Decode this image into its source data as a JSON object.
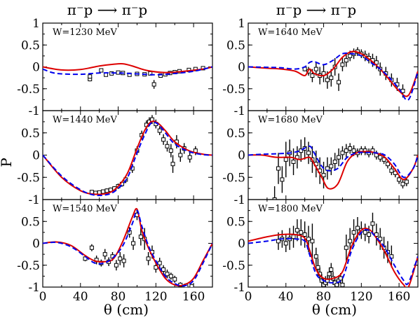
{
  "figure": {
    "shared_ylabel": "P",
    "shared_xlabel": "θ (cm)",
    "column_titles": [
      "π⁻p ⟶ π⁻p",
      "π⁻p ⟶ π⁻p"
    ]
  },
  "chart_data": [
    {
      "type": "line",
      "panel_label": "W=1230 MeV",
      "xlim": [
        0,
        180
      ],
      "ylim": [
        -1,
        1
      ],
      "xticks": [
        0,
        40,
        80,
        120,
        160
      ],
      "yticks": [
        -1,
        -0.5,
        0,
        0.5,
        1
      ],
      "series": [
        {
          "color": "#dd0000",
          "dash": false,
          "x": [
            0,
            20,
            40,
            60,
            75,
            85,
            95,
            110,
            130,
            150,
            170,
            180
          ],
          "y": [
            0,
            -0.07,
            -0.06,
            0.02,
            0.06,
            0.07,
            0.02,
            -0.08,
            -0.13,
            -0.1,
            -0.05,
            0
          ]
        },
        {
          "color": "#0000ee",
          "dash": true,
          "x": [
            0,
            10,
            20,
            40,
            60,
            80,
            100,
            120,
            140,
            160,
            180
          ],
          "y": [
            -0.05,
            -0.13,
            -0.16,
            -0.17,
            -0.14,
            -0.14,
            -0.16,
            -0.18,
            -0.15,
            -0.1,
            0
          ]
        }
      ],
      "points": {
        "x": [
          50,
          50,
          62,
          67,
          73,
          80,
          85,
          92,
          100,
          108,
          114,
          118,
          125,
          130,
          135,
          140,
          145,
          155,
          162,
          170
        ],
        "y": [
          -0.28,
          -0.22,
          -0.08,
          -0.18,
          -0.15,
          -0.13,
          -0.14,
          -0.18,
          -0.16,
          -0.17,
          -0.15,
          -0.4,
          -0.2,
          -0.17,
          -0.14,
          -0.12,
          -0.1,
          -0.07,
          -0.05,
          -0.03
        ],
        "err": [
          0.05,
          0.05,
          0.04,
          0.04,
          0.04,
          0.04,
          0.04,
          0.04,
          0.04,
          0.04,
          0.04,
          0.1,
          0.04,
          0.04,
          0.04,
          0.04,
          0.04,
          0.04,
          0.03,
          0.03
        ]
      }
    },
    {
      "type": "line",
      "panel_label": "W=1440 MeV",
      "xlim": [
        0,
        180
      ],
      "ylim": [
        -1,
        1
      ],
      "xticks": [
        0,
        40,
        80,
        120,
        160
      ],
      "yticks": [
        -1,
        -0.5,
        0,
        0.5,
        1
      ],
      "series": [
        {
          "color": "#dd0000",
          "dash": false,
          "x": [
            0,
            20,
            40,
            55,
            70,
            80,
            90,
            100,
            108,
            115,
            122,
            130,
            140,
            155,
            170,
            180
          ],
          "y": [
            0,
            -0.5,
            -0.8,
            -0.88,
            -0.85,
            -0.7,
            -0.4,
            0.15,
            0.55,
            0.75,
            0.72,
            0.55,
            0.3,
            0.1,
            0.02,
            0
          ]
        },
        {
          "color": "#0000ee",
          "dash": true,
          "x": [
            0,
            20,
            40,
            55,
            70,
            80,
            90,
            100,
            108,
            115,
            122,
            130,
            140,
            155,
            170,
            180
          ],
          "y": [
            0,
            -0.47,
            -0.78,
            -0.9,
            -0.88,
            -0.75,
            -0.5,
            0.05,
            0.45,
            0.72,
            0.7,
            0.5,
            0.25,
            0.08,
            0.01,
            0
          ]
        }
      ],
      "points": {
        "x": [
          52,
          56,
          60,
          64,
          68,
          72,
          76,
          80,
          84,
          88,
          95,
          100,
          105,
          110,
          113,
          116,
          120,
          124,
          128,
          132,
          136,
          138,
          142,
          146,
          150,
          156,
          162
        ],
        "y": [
          -0.83,
          -0.85,
          -0.84,
          -0.82,
          -0.8,
          -0.78,
          -0.75,
          -0.7,
          -0.65,
          -0.55,
          -0.3,
          0.1,
          0.45,
          0.68,
          0.75,
          0.8,
          0.7,
          0.55,
          0.35,
          0.2,
          0.1,
          -0.2,
          0.3,
          0.0,
          0.15,
          -0.05,
          0.1
        ],
        "err": [
          0.04,
          0.04,
          0.04,
          0.04,
          0.05,
          0.05,
          0.05,
          0.06,
          0.06,
          0.08,
          0.1,
          0.1,
          0.1,
          0.1,
          0.1,
          0.1,
          0.1,
          0.1,
          0.12,
          0.12,
          0.15,
          0.2,
          0.15,
          0.15,
          0.12,
          0.12,
          0.1
        ]
      }
    },
    {
      "type": "line",
      "panel_label": "W=1540 MeV",
      "xlim": [
        0,
        180
      ],
      "ylim": [
        -1,
        1
      ],
      "xticks": [
        0,
        40,
        80,
        120,
        160
      ],
      "yticks": [
        -1,
        -0.5,
        0,
        0.5,
        1
      ],
      "series": [
        {
          "color": "#dd0000",
          "dash": false,
          "x": [
            0,
            15,
            30,
            45,
            55,
            65,
            75,
            85,
            95,
            100,
            105,
            112,
            120,
            130,
            140,
            150,
            160,
            170,
            180
          ],
          "y": [
            0,
            0.03,
            -0.05,
            -0.28,
            -0.4,
            -0.42,
            -0.35,
            0.05,
            0.6,
            0.78,
            0.3,
            -0.1,
            -0.45,
            -0.8,
            -0.95,
            -0.95,
            -0.8,
            -0.4,
            0
          ]
        },
        {
          "color": "#0000ee",
          "dash": true,
          "x": [
            0,
            15,
            30,
            45,
            55,
            65,
            75,
            85,
            95,
            100,
            105,
            112,
            120,
            130,
            140,
            150,
            160,
            170,
            180
          ],
          "y": [
            0,
            0.02,
            -0.08,
            -0.3,
            -0.45,
            -0.45,
            -0.32,
            -0.05,
            0.45,
            0.75,
            0.4,
            -0.05,
            -0.4,
            -0.75,
            -0.92,
            -0.97,
            -0.85,
            -0.45,
            0
          ]
        }
      ],
      "points": {
        "x": [
          45,
          52,
          57,
          62,
          66,
          70,
          74,
          78,
          82,
          86,
          92,
          96,
          100,
          104,
          108,
          112,
          116,
          120,
          124,
          128,
          132,
          136,
          140,
          146,
          152,
          158
        ],
        "y": [
          -0.35,
          -0.1,
          -0.38,
          -0.45,
          -0.25,
          -0.42,
          -0.3,
          -0.5,
          -0.35,
          -0.4,
          0.25,
          0.0,
          0.65,
          0.15,
          0.1,
          -0.35,
          -0.2,
          -0.55,
          -0.45,
          -0.6,
          -0.7,
          -0.75,
          -0.82,
          -0.95,
          -0.97,
          -0.98
        ],
        "err": [
          0.06,
          0.08,
          0.1,
          0.08,
          0.12,
          0.1,
          0.1,
          0.12,
          0.15,
          0.15,
          0.12,
          0.15,
          0.12,
          0.2,
          0.25,
          0.15,
          0.15,
          0.12,
          0.12,
          0.1,
          0.1,
          0.08,
          0.08,
          0.06,
          0.06,
          0.05
        ]
      }
    },
    {
      "type": "line",
      "panel_label": "W=1640 MeV",
      "xlim": [
        0,
        180
      ],
      "ylim": [
        -1,
        1
      ],
      "xticks": [
        0,
        40,
        80,
        120,
        160
      ],
      "yticks": [
        -1,
        -0.5,
        0,
        0.5,
        1
      ],
      "series": [
        {
          "color": "#dd0000",
          "dash": false,
          "x": [
            0,
            20,
            35,
            50,
            60,
            65,
            70,
            80,
            90,
            100,
            110,
            120,
            130,
            140,
            150,
            160,
            170,
            180
          ],
          "y": [
            0,
            -0.03,
            -0.05,
            -0.1,
            -0.2,
            -0.05,
            -0.15,
            -0.2,
            -0.05,
            0.22,
            0.35,
            0.3,
            0.15,
            -0.05,
            -0.3,
            -0.55,
            -0.65,
            -0.1
          ]
        },
        {
          "color": "#0000ee",
          "dash": true,
          "x": [
            0,
            20,
            35,
            50,
            60,
            65,
            70,
            80,
            90,
            100,
            110,
            120,
            130,
            140,
            150,
            160,
            170,
            180
          ],
          "y": [
            0,
            -0.01,
            -0.02,
            -0.05,
            0.0,
            0.1,
            0.12,
            0.05,
            0.15,
            0.3,
            0.3,
            0.25,
            0.1,
            -0.05,
            -0.25,
            -0.5,
            -0.75,
            -0.1
          ]
        }
      ],
      "points": {
        "x": [
          60,
          64,
          68,
          72,
          76,
          80,
          84,
          88,
          92,
          96,
          100,
          104,
          108,
          112,
          116,
          120,
          124,
          128,
          132,
          136,
          140,
          146,
          152,
          158,
          164
        ],
        "y": [
          -0.05,
          -0.1,
          -0.2,
          -0.05,
          -0.2,
          -0.15,
          -0.3,
          -0.25,
          0.0,
          -0.35,
          0.05,
          0.15,
          0.25,
          0.3,
          0.35,
          0.3,
          0.25,
          0.2,
          0.15,
          0.1,
          -0.05,
          -0.15,
          -0.3,
          -0.4,
          -0.55
        ],
        "err": [
          0.05,
          0.1,
          0.15,
          0.15,
          0.2,
          0.2,
          0.2,
          0.2,
          0.2,
          0.2,
          0.15,
          0.15,
          0.12,
          0.12,
          0.1,
          0.1,
          0.12,
          0.12,
          0.15,
          0.15,
          0.15,
          0.15,
          0.15,
          0.15,
          0.15
        ]
      }
    },
    {
      "type": "line",
      "panel_label": "W=1680 MeV",
      "xlim": [
        0,
        180
      ],
      "ylim": [
        -1,
        1
      ],
      "xticks": [
        0,
        40,
        80,
        120,
        160
      ],
      "yticks": [
        -1,
        -0.5,
        0,
        0.5,
        1
      ],
      "series": [
        {
          "color": "#dd0000",
          "dash": false,
          "x": [
            0,
            15,
            30,
            45,
            55,
            65,
            70,
            78,
            85,
            95,
            105,
            115,
            125,
            135,
            145,
            155,
            165,
            175,
            180
          ],
          "y": [
            0,
            0.0,
            -0.05,
            -0.05,
            -0.1,
            -0.05,
            -0.2,
            -0.5,
            -0.75,
            -0.65,
            -0.15,
            0.05,
            0.08,
            0.05,
            -0.05,
            -0.3,
            -0.55,
            -0.3,
            0
          ]
        },
        {
          "color": "#0000ee",
          "dash": true,
          "x": [
            0,
            15,
            30,
            45,
            55,
            65,
            70,
            78,
            85,
            95,
            105,
            115,
            125,
            135,
            145,
            155,
            165,
            175,
            180
          ],
          "y": [
            0,
            0.02,
            0.03,
            0.05,
            0.1,
            0.2,
            0.05,
            -0.25,
            -0.35,
            -0.3,
            -0.05,
            0.05,
            0.06,
            0.05,
            0.0,
            -0.2,
            -0.5,
            -0.3,
            0
          ]
        }
      ],
      "points": {
        "x": [
          28,
          32,
          36,
          40,
          44,
          48,
          52,
          56,
          60,
          64,
          68,
          72,
          76,
          80,
          84,
          88,
          92,
          96,
          100,
          104,
          108,
          112,
          116,
          120,
          124,
          128,
          132,
          136,
          140,
          144,
          148,
          152,
          156,
          160,
          164,
          168
        ],
        "y": [
          -1.0,
          -0.3,
          -0.55,
          -0.1,
          0.05,
          -0.15,
          -0.05,
          0.1,
          0.15,
          0.05,
          -0.1,
          -0.2,
          -0.35,
          -0.45,
          -0.3,
          -0.25,
          -0.15,
          -0.05,
          0.05,
          0.1,
          0.15,
          0.1,
          0.05,
          0.1,
          0.1,
          0.05,
          0.1,
          0.0,
          -0.05,
          -0.1,
          -0.2,
          -0.35,
          -0.4,
          -0.55,
          -0.65,
          -0.6
        ],
        "err": [
          0.3,
          0.35,
          0.3,
          0.4,
          0.3,
          0.3,
          0.25,
          0.25,
          0.25,
          0.25,
          0.3,
          0.3,
          0.3,
          0.3,
          0.25,
          0.2,
          0.2,
          0.2,
          0.15,
          0.15,
          0.12,
          0.12,
          0.1,
          0.1,
          0.1,
          0.1,
          0.1,
          0.1,
          0.1,
          0.1,
          0.1,
          0.1,
          0.1,
          0.1,
          0.1,
          0.1
        ]
      }
    },
    {
      "type": "line",
      "panel_label": "W=1800 MeV",
      "xlim": [
        0,
        180
      ],
      "ylim": [
        -1,
        1
      ],
      "xticks": [
        0,
        40,
        80,
        120,
        160
      ],
      "yticks": [
        -1,
        -0.5,
        0,
        0.5,
        1
      ],
      "series": [
        {
          "color": "#dd0000",
          "dash": false,
          "x": [
            0,
            20,
            35,
            50,
            60,
            65,
            72,
            80,
            90,
            100,
            110,
            120,
            128,
            135,
            145,
            155,
            165,
            170,
            180
          ],
          "y": [
            0.05,
            0.15,
            0.2,
            0.2,
            0.12,
            -0.15,
            -0.6,
            -0.8,
            -0.8,
            -0.65,
            -0.05,
            0.3,
            0.32,
            0.15,
            -0.2,
            -0.65,
            -0.95,
            -1.0,
            -0.3
          ]
        },
        {
          "color": "#0000ee",
          "dash": true,
          "x": [
            0,
            20,
            35,
            50,
            60,
            65,
            72,
            80,
            90,
            100,
            110,
            120,
            128,
            135,
            145,
            155,
            165,
            170,
            180
          ],
          "y": [
            0.0,
            0.05,
            0.1,
            0.1,
            0.05,
            -0.25,
            -0.7,
            -0.85,
            -0.9,
            -0.8,
            -0.15,
            0.25,
            0.3,
            0.15,
            -0.1,
            -0.5,
            -0.85,
            -0.9,
            -0.3
          ]
        }
      ],
      "points": {
        "x": [
          32,
          36,
          40,
          44,
          48,
          52,
          56,
          60,
          64,
          68,
          72,
          74,
          76,
          78,
          80,
          82,
          84,
          86,
          88,
          90,
          92,
          94,
          96,
          98,
          100,
          104,
          108,
          112,
          116,
          120,
          124,
          128,
          132,
          136,
          140,
          144,
          148,
          152
        ],
        "y": [
          0.05,
          0.1,
          0.0,
          0.1,
          0.15,
          0.3,
          0.25,
          0.2,
          0.1,
          0.05,
          -0.3,
          -0.55,
          -0.7,
          -0.85,
          -0.95,
          -0.9,
          -0.85,
          -0.7,
          -0.6,
          -0.8,
          -0.9,
          -0.95,
          -0.85,
          -0.8,
          -0.95,
          -0.1,
          0.05,
          0.25,
          0.35,
          0.3,
          0.25,
          0.2,
          0.45,
          0.2,
          0.1,
          -0.1,
          -0.2,
          -0.3
        ],
        "err": [
          0.2,
          0.2,
          0.2,
          0.25,
          0.25,
          0.25,
          0.3,
          0.3,
          0.3,
          0.4,
          0.2,
          0.2,
          0.15,
          0.15,
          0.15,
          0.15,
          0.12,
          0.15,
          0.15,
          0.15,
          0.12,
          0.12,
          0.12,
          0.12,
          0.15,
          0.3,
          0.3,
          0.3,
          0.25,
          0.2,
          0.2,
          0.2,
          0.25,
          0.25,
          0.25,
          0.25,
          0.25,
          0.25
        ]
      }
    }
  ]
}
